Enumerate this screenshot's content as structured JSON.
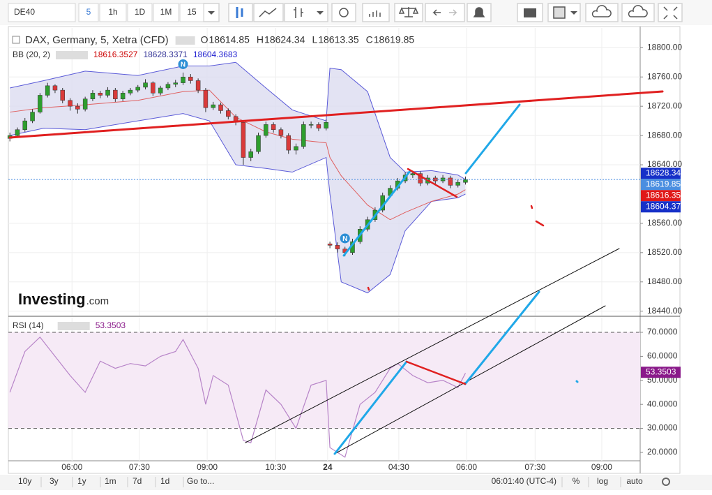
{
  "toolbar": {
    "symbol": "DE40",
    "intervals": [
      "5",
      "1h",
      "1D",
      "1M",
      "15"
    ]
  },
  "chart_data": {
    "type": "candlestick",
    "title": "DAX, Germany, 5, Xetra (CFD)",
    "ohlc_labels": [
      {
        "label": "O",
        "value": 18614.85
      },
      {
        "label": "H",
        "value": 18624.34
      },
      {
        "label": "L",
        "value": 18613.35
      },
      {
        "label": "C",
        "value": 18619.85
      }
    ],
    "indicator": {
      "name": "BB (20, 2)",
      "values": [
        18616.3527,
        18628.3371,
        18604.3683
      ],
      "colors": [
        "#cc0000",
        "#3a3a9a",
        "#1f1fd0"
      ]
    },
    "up_color": "#2e9e2e",
    "down_color": "#d93a3a",
    "x": [
      0,
      2,
      4,
      6,
      8,
      10,
      12,
      14,
      16,
      18,
      20,
      22,
      24,
      26,
      28,
      30,
      32,
      34,
      36,
      38,
      40,
      42,
      44,
      46,
      48,
      50,
      52,
      54,
      56,
      58,
      60,
      62,
      64,
      66,
      68,
      70,
      72,
      74,
      76,
      78,
      80,
      82,
      84,
      85,
      87,
      89,
      91,
      93,
      95,
      97,
      99,
      101,
      103,
      105,
      107,
      109,
      111,
      113,
      115,
      117,
      119,
      121
    ],
    "ohlc": [
      [
        18676,
        18684,
        18672,
        18680
      ],
      [
        18680,
        18691,
        18678,
        18688
      ],
      [
        18688,
        18704,
        18685,
        18700
      ],
      [
        18700,
        18716,
        18697,
        18712
      ],
      [
        18712,
        18738,
        18710,
        18735
      ],
      [
        18735,
        18752,
        18732,
        18748
      ],
      [
        18748,
        18750,
        18738,
        18742
      ],
      [
        18742,
        18745,
        18724,
        18728
      ],
      [
        18728,
        18731,
        18714,
        18720
      ],
      [
        18720,
        18724,
        18710,
        18716
      ],
      [
        18716,
        18733,
        18713,
        18730
      ],
      [
        18730,
        18742,
        18727,
        18738
      ],
      [
        18738,
        18741,
        18731,
        18735
      ],
      [
        18735,
        18746,
        18732,
        18742
      ],
      [
        18742,
        18745,
        18726,
        18730
      ],
      [
        18730,
        18741,
        18727,
        18738
      ],
      [
        18738,
        18745,
        18735,
        18742
      ],
      [
        18742,
        18749,
        18739,
        18746
      ],
      [
        18746,
        18757,
        18743,
        18752
      ],
      [
        18752,
        18754,
        18734,
        18738
      ],
      [
        18738,
        18748,
        18735,
        18745
      ],
      [
        18745,
        18753,
        18742,
        18750
      ],
      [
        18750,
        18756,
        18746,
        18752
      ],
      [
        18752,
        18766,
        18749,
        18760
      ],
      [
        18760,
        18764,
        18751,
        18755
      ],
      [
        18755,
        18758,
        18738,
        18742
      ],
      [
        18742,
        18745,
        18712,
        18718
      ],
      [
        18718,
        18726,
        18715,
        18722
      ],
      [
        18722,
        18725,
        18710,
        18714
      ],
      [
        18714,
        18717,
        18702,
        18706
      ],
      [
        18706,
        18709,
        18694,
        18698
      ],
      [
        18698,
        18700,
        18640,
        18650
      ],
      [
        18650,
        18662,
        18645,
        18658
      ],
      [
        18658,
        18684,
        18655,
        18680
      ],
      [
        18680,
        18699,
        18677,
        18695
      ],
      [
        18695,
        18698,
        18684,
        18688
      ],
      [
        18688,
        18691,
        18676,
        18680
      ],
      [
        18680,
        18683,
        18655,
        18660
      ],
      [
        18660,
        18669,
        18654,
        18665
      ],
      [
        18665,
        18699,
        18662,
        18695
      ],
      [
        18695,
        18699,
        18690,
        18695
      ],
      [
        18695,
        18698,
        18686,
        18690
      ],
      [
        18690,
        18702,
        18687,
        18698
      ],
      [
        18532,
        18535,
        18526,
        18530
      ],
      [
        18530,
        18534,
        18520,
        18525
      ],
      [
        18525,
        18528,
        18515,
        18520
      ],
      [
        18520,
        18539,
        18517,
        18535
      ],
      [
        18535,
        18556,
        18532,
        18552
      ],
      [
        18552,
        18569,
        18549,
        18565
      ],
      [
        18565,
        18582,
        18562,
        18578
      ],
      [
        18578,
        18602,
        18575,
        18598
      ],
      [
        18598,
        18612,
        18595,
        18608
      ],
      [
        18608,
        18622,
        18605,
        18618
      ],
      [
        18618,
        18630,
        18615,
        18626
      ],
      [
        18626,
        18632,
        18622,
        18628
      ],
      [
        18628,
        18631,
        18611,
        18615
      ],
      [
        18615,
        18626,
        18612,
        18622
      ],
      [
        18622,
        18625,
        18614,
        18618
      ],
      [
        18618,
        18626,
        18615,
        18622
      ],
      [
        18622,
        18625,
        18608,
        18612
      ],
      [
        18612,
        18620,
        18609,
        18616
      ],
      [
        18616,
        18624,
        18613,
        18620
      ]
    ],
    "bb": {
      "x": [
        0,
        9,
        20,
        34,
        46,
        53,
        60,
        68,
        75,
        84,
        85,
        88,
        95,
        101,
        105,
        112,
        119,
        121
      ],
      "upper": [
        18745,
        18755,
        18768,
        18762,
        18775,
        18775,
        18780,
        18745,
        18715,
        18700,
        18772,
        18770,
        18740,
        18650,
        18630,
        18632,
        18626,
        18620
      ],
      "middle": [
        18712,
        18718,
        18722,
        18728,
        18740,
        18742,
        18705,
        18685,
        18675,
        18670,
        18650,
        18625,
        18585,
        18565,
        18575,
        18590,
        18600,
        18606
      ],
      "lower": [
        18680,
        18690,
        18688,
        18700,
        18710,
        18700,
        18640,
        18635,
        18630,
        18650,
        18600,
        18480,
        18465,
        18490,
        18550,
        18590,
        18595,
        18600
      ],
      "band_color": "#dcdcf0",
      "line_color": "#5a5ad8",
      "middle_color": "#e06060"
    },
    "xlim": [
      -0.4,
      167.4
    ],
    "ylim": [
      18434,
      18827
    ],
    "yticks": [
      {
        "value": 18800,
        "label": "18800.00"
      },
      {
        "value": 18760,
        "label": "18760.00"
      },
      {
        "value": 18720,
        "label": "18720.00"
      },
      {
        "value": 18680,
        "label": "18680.00"
      },
      {
        "value": 18640,
        "label": "18640.00"
      },
      {
        "value": 18560,
        "label": "18560.00"
      },
      {
        "value": 18520,
        "label": "18520.00"
      },
      {
        "value": 18480,
        "label": "18480.00"
      },
      {
        "value": 18440,
        "label": "18440.00"
      }
    ],
    "xticks": [
      {
        "value": 16.5,
        "label": "06:00"
      },
      {
        "value": 34.4,
        "label": "07:30"
      },
      {
        "value": 52.4,
        "label": "09:00"
      },
      {
        "value": 70.6,
        "label": "10:30"
      },
      {
        "value": 84.4,
        "label": "24"
      },
      {
        "value": 103.3,
        "label": "04:30"
      },
      {
        "value": 121.3,
        "label": "06:00"
      },
      {
        "value": 139.5,
        "label": "07:30"
      },
      {
        "value": 157.2,
        "label": "09:00"
      }
    ],
    "price_labels": [
      {
        "value": 18628.34,
        "color": "#1630c8"
      },
      {
        "value": 18619.85,
        "color": "#4a8ee0",
        "dotted_line": true
      },
      {
        "value": 18616.35,
        "color": "#e01818"
      },
      {
        "value": 18604.37,
        "color": "#1630c8"
      }
    ],
    "events": [
      {
        "x": 46,
        "label": "N"
      },
      {
        "x": 89,
        "label": "N"
      }
    ],
    "watermark": [
      "Investing",
      ".com"
    ],
    "rsi": {
      "name": "RSI (14)",
      "value": 53.3503,
      "color": "#b784c8",
      "label_color": "#8a1a8a",
      "band_color": "#f6eaf6",
      "x": [
        0,
        4,
        8,
        12,
        16,
        20,
        24,
        28,
        32,
        36,
        40,
        44,
        46,
        50,
        52,
        54,
        58,
        62,
        64,
        68,
        72,
        76,
        80,
        84,
        85,
        89,
        93,
        97,
        101,
        103,
        107,
        111,
        115,
        119,
        121
      ],
      "values": [
        45,
        62,
        68,
        60,
        52,
        45,
        58,
        55,
        57,
        56,
        60,
        62,
        67,
        55,
        40,
        52,
        48,
        25,
        24,
        46,
        40,
        30,
        48,
        50,
        22,
        18,
        40,
        45,
        55,
        57,
        52,
        49,
        50,
        47,
        53
      ],
      "ylim": [
        16.5,
        76.1
      ],
      "levels": [
        30,
        70
      ],
      "yticks": [
        {
          "value": 70,
          "label": "70.0000"
        },
        {
          "value": 60,
          "label": "60.0000"
        },
        {
          "value": 50,
          "label": "50.0000"
        },
        {
          "value": 40,
          "label": "40.0000"
        },
        {
          "value": 30,
          "label": "30.0000"
        },
        {
          "value": 20,
          "label": "20.0000"
        }
      ]
    }
  },
  "footer": {
    "ranges": [
      "10y",
      "3y",
      "1y",
      "1m",
      "7d",
      "1d"
    ],
    "goto": "Go to...",
    "clock": "06:01:40 (UTC-4)",
    "options": [
      "%",
      "log",
      "auto"
    ]
  }
}
